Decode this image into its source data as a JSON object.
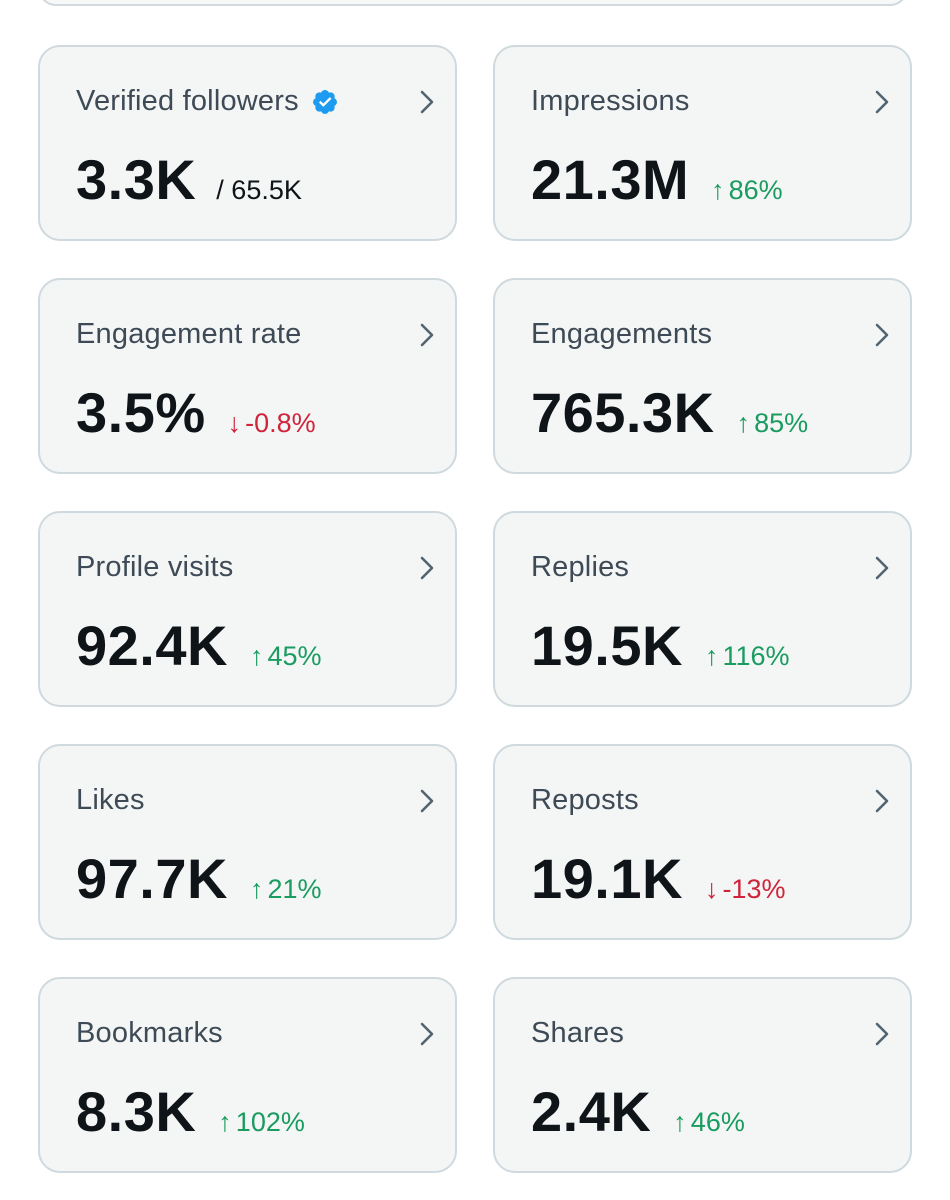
{
  "colors": {
    "positive": "#1a9b5f",
    "negative": "#d0243a",
    "verified_badge": "#1d9bf0",
    "card_border": "#cfd9de",
    "card_background": "#f4f6f6"
  },
  "cards": [
    {
      "label": "Verified followers",
      "value": "3.3K",
      "suffix": "/ 65.5K",
      "change": "",
      "direction": "",
      "badge_icon": "verified-badge-icon"
    },
    {
      "label": "Impressions",
      "value": "21.3M",
      "suffix": "",
      "change": "86%",
      "direction": "up"
    },
    {
      "label": "Engagement rate",
      "value": "3.5%",
      "suffix": "",
      "change": "-0.8%",
      "direction": "down"
    },
    {
      "label": "Engagements",
      "value": "765.3K",
      "suffix": "",
      "change": "85%",
      "direction": "up"
    },
    {
      "label": "Profile visits",
      "value": "92.4K",
      "suffix": "",
      "change": "45%",
      "direction": "up"
    },
    {
      "label": "Replies",
      "value": "19.5K",
      "suffix": "",
      "change": "116%",
      "direction": "up"
    },
    {
      "label": "Likes",
      "value": "97.7K",
      "suffix": "",
      "change": "21%",
      "direction": "up"
    },
    {
      "label": "Reposts",
      "value": "19.1K",
      "suffix": "",
      "change": "-13%",
      "direction": "down"
    },
    {
      "label": "Bookmarks",
      "value": "8.3K",
      "suffix": "",
      "change": "102%",
      "direction": "up"
    },
    {
      "label": "Shares",
      "value": "2.4K",
      "suffix": "",
      "change": "46%",
      "direction": "up"
    }
  ],
  "icons": {
    "up": "arrow-up-icon",
    "down": "arrow-down-icon",
    "chevron": "chevron-right-icon"
  }
}
